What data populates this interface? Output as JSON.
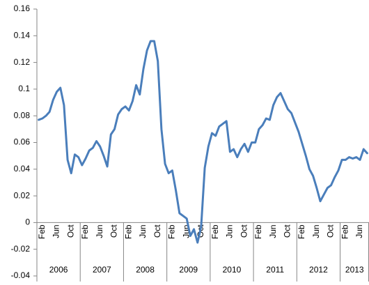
{
  "chart_data": {
    "type": "line",
    "categories": [
      null,
      "Feb",
      null,
      null,
      null,
      "Jun",
      null,
      null,
      null,
      "Oct",
      null,
      null,
      null,
      "Feb",
      null,
      null,
      null,
      "Jun",
      null,
      null,
      null,
      "Oct",
      null,
      null,
      null,
      "Feb",
      null,
      null,
      null,
      "Jun",
      null,
      null,
      null,
      "Oct",
      null,
      null,
      null,
      "Feb",
      null,
      null,
      null,
      "Jun",
      null,
      null,
      null,
      "Oct",
      null,
      null,
      null,
      "Feb",
      null,
      null,
      null,
      "Jun",
      null,
      null,
      null,
      "Oct",
      null,
      null,
      null,
      "Feb",
      null,
      null,
      null,
      "Jun",
      null,
      null,
      null,
      "Oct",
      null,
      null,
      null,
      "Feb",
      null,
      null,
      null,
      "Jun",
      null,
      null,
      null,
      "Oct",
      null,
      null,
      null,
      "Feb",
      null,
      null,
      null,
      "Jun",
      null,
      null
    ],
    "year_labels": [
      "2006",
      "2007",
      "2008",
      "2009",
      "2010",
      "2011",
      "2012",
      "2013"
    ],
    "values": [
      0.077,
      0.078,
      0.08,
      0.083,
      0.092,
      0.098,
      0.101,
      0.088,
      0.047,
      0.037,
      0.051,
      0.049,
      0.043,
      0.048,
      0.054,
      0.056,
      0.061,
      0.057,
      0.05,
      0.042,
      0.066,
      0.07,
      0.081,
      0.085,
      0.087,
      0.084,
      0.091,
      0.103,
      0.096,
      0.115,
      0.129,
      0.136,
      0.136,
      0.121,
      0.07,
      0.044,
      0.037,
      0.039,
      0.024,
      0.007,
      0.005,
      0.003,
      -0.01,
      -0.005,
      -0.015,
      -0.003,
      0.041,
      0.057,
      0.067,
      0.065,
      0.072,
      0.074,
      0.076,
      0.053,
      0.055,
      0.049,
      0.055,
      0.059,
      0.053,
      0.06,
      0.06,
      0.07,
      0.073,
      0.078,
      0.077,
      0.088,
      0.094,
      0.097,
      0.091,
      0.085,
      0.082,
      0.075,
      0.068,
      0.059,
      0.05,
      0.04,
      0.035,
      0.026,
      0.016,
      0.021,
      0.026,
      0.028,
      0.034,
      0.039,
      0.047,
      0.047,
      0.049,
      0.048,
      0.049,
      0.047,
      0.055,
      0.052
    ],
    "color": "#4a7ebb",
    "ylim": [
      -0.04,
      0.16
    ],
    "yticks": [
      -0.04,
      -0.02,
      0,
      0.02,
      0.04,
      0.06,
      0.08,
      0.1,
      0.12,
      0.14,
      0.16
    ],
    "grid": false
  }
}
